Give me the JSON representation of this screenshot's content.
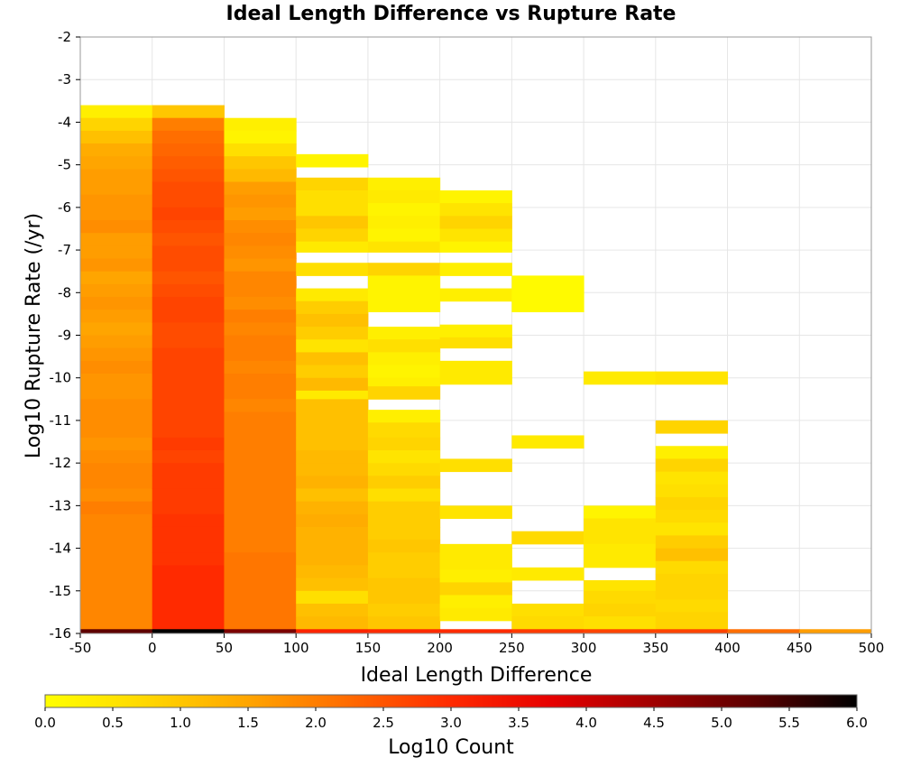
{
  "chart_data": {
    "type": "heatmap",
    "title": "Ideal Length Difference vs Rupture Rate",
    "xlabel": "Ideal Length Difference",
    "ylabel": "Log10 Rupture Rate (/yr)",
    "xlim": [
      -50,
      500
    ],
    "ylim": [
      -16,
      -2
    ],
    "x_ticks": [
      "-50",
      "0",
      "50",
      "100",
      "150",
      "200",
      "250",
      "300",
      "350",
      "400",
      "450",
      "500"
    ],
    "y_ticks": [
      "-2",
      "-3",
      "-4",
      "-5",
      "-6",
      "-7",
      "-8",
      "-9",
      "-10",
      "-11",
      "-12",
      "-13",
      "-14",
      "-15",
      "-16"
    ],
    "x_bin_width": 50,
    "y_bin_height": 0.3,
    "grid": true,
    "colorbar": {
      "label": "Log10 Count",
      "range": [
        0,
        6
      ],
      "ticks": [
        "0.0",
        "0.5",
        "1.0",
        "1.5",
        "2.0",
        "2.5",
        "3.0",
        "3.5",
        "4.0",
        "4.5",
        "5.0",
        "5.5",
        "6.0"
      ],
      "colors": [
        "#ffff00",
        "#ffd700",
        "#ffa500",
        "#ff6a00",
        "#ff2a00",
        "#e60000",
        "#a00000",
        "#5a0000",
        "#000000"
      ]
    },
    "columns": [
      {
        "x_start": -50,
        "top": -3.6,
        "bottom": -16,
        "values": [
          0.3,
          0.8,
          1.1,
          1.4,
          1.5,
          1.6,
          1.6,
          1.7,
          1.7,
          1.8,
          1.6,
          1.6,
          1.7,
          1.5,
          1.6,
          1.7,
          1.6,
          1.5,
          1.6,
          1.7,
          1.8,
          1.7,
          1.7,
          1.8,
          1.8,
          1.8,
          1.7,
          1.8,
          1.9,
          1.9,
          1.8,
          2.0,
          1.9,
          1.9,
          1.9,
          1.9,
          1.9,
          1.9,
          1.9,
          1.9,
          1.9
        ],
        "bottom_value": 5.2
      },
      {
        "x_start": 0,
        "top": -3.6,
        "bottom": -16,
        "values": [
          1.0,
          2.0,
          2.2,
          2.3,
          2.4,
          2.5,
          2.6,
          2.6,
          2.7,
          2.6,
          2.5,
          2.6,
          2.6,
          2.5,
          2.6,
          2.7,
          2.7,
          2.6,
          2.6,
          2.7,
          2.7,
          2.7,
          2.7,
          2.7,
          2.7,
          2.7,
          2.8,
          2.7,
          2.8,
          2.8,
          2.8,
          2.8,
          2.9,
          2.9,
          2.9,
          2.9,
          3.0,
          3.0,
          3.0,
          3.0,
          3.0
        ],
        "bottom_value": 6.0
      },
      {
        "x_start": 50,
        "top": -3.9,
        "bottom": -16,
        "values": [
          0.3,
          0.2,
          0.6,
          1.0,
          1.2,
          1.6,
          1.7,
          1.6,
          1.8,
          1.9,
          1.8,
          1.7,
          1.9,
          1.9,
          1.8,
          2.0,
          1.9,
          2.0,
          2.0,
          1.9,
          2.0,
          2.0,
          1.9,
          2.0,
          2.0,
          2.0,
          2.0,
          2.0,
          2.0,
          2.0,
          2.0,
          2.0,
          2.0,
          2.0,
          2.1,
          2.1,
          2.1,
          2.1,
          2.1,
          2.1
        ],
        "bottom_value": 4.9
      },
      {
        "x_start": 100,
        "segments": [
          [
            -4.75,
            -5.05,
            0.2
          ],
          [
            -5.3,
            -5.6,
            0.8
          ],
          [
            -5.6,
            -5.9,
            0.6
          ],
          [
            -5.9,
            -6.2,
            0.6
          ],
          [
            -6.2,
            -6.5,
            1.0
          ],
          [
            -6.5,
            -6.8,
            0.8
          ],
          [
            -6.8,
            -7.05,
            0.4
          ],
          [
            -7.3,
            -7.6,
            0.6
          ],
          [
            -7.9,
            -8.2,
            0.4
          ],
          [
            -8.2,
            -8.5,
            0.9
          ],
          [
            -8.5,
            -8.8,
            1.1
          ],
          [
            -8.8,
            -9.1,
            0.9
          ],
          [
            -9.1,
            -9.4,
            0.5
          ],
          [
            -9.4,
            -9.7,
            1.1
          ],
          [
            -9.7,
            -10.0,
            0.9
          ],
          [
            -10.0,
            -10.3,
            1.2
          ],
          [
            -10.3,
            -10.5,
            0.4
          ],
          [
            -10.5,
            -10.8,
            1.1
          ],
          [
            -10.8,
            -11.1,
            1.1
          ],
          [
            -11.1,
            -11.4,
            1.1
          ],
          [
            -11.4,
            -11.7,
            1.1
          ],
          [
            -11.7,
            -12.0,
            1.2
          ],
          [
            -12.0,
            -12.3,
            1.2
          ],
          [
            -12.3,
            -12.6,
            1.3
          ],
          [
            -12.6,
            -12.9,
            1.1
          ],
          [
            -12.9,
            -13.2,
            1.3
          ],
          [
            -13.2,
            -13.5,
            1.4
          ],
          [
            -13.5,
            -13.8,
            1.3
          ],
          [
            -13.8,
            -14.1,
            1.3
          ],
          [
            -14.1,
            -14.4,
            1.3
          ],
          [
            -14.4,
            -14.7,
            1.2
          ],
          [
            -14.7,
            -15.0,
            1.1
          ],
          [
            -15.0,
            -15.3,
            0.6
          ],
          [
            -15.3,
            -15.6,
            1.1
          ],
          [
            -15.6,
            -15.9,
            1.2
          ],
          [
            -15.9,
            -16.0,
            3.1
          ]
        ]
      },
      {
        "x_start": 150,
        "segments": [
          [
            -5.3,
            -5.6,
            0.3
          ],
          [
            -5.6,
            -5.9,
            0.4
          ],
          [
            -5.9,
            -6.2,
            0.2
          ],
          [
            -6.2,
            -6.5,
            0.3
          ],
          [
            -6.5,
            -6.8,
            0.2
          ],
          [
            -6.8,
            -7.05,
            0.5
          ],
          [
            -7.3,
            -7.6,
            0.8
          ],
          [
            -7.6,
            -7.9,
            0.2
          ],
          [
            -7.9,
            -8.2,
            0.2
          ],
          [
            -8.2,
            -8.45,
            0.2
          ],
          [
            -8.8,
            -9.1,
            0.3
          ],
          [
            -9.1,
            -9.4,
            0.6
          ],
          [
            -9.4,
            -9.7,
            0.3
          ],
          [
            -9.7,
            -10.0,
            0.2
          ],
          [
            -10.0,
            -10.2,
            0.3
          ],
          [
            -10.2,
            -10.5,
            0.8
          ],
          [
            -10.75,
            -11.05,
            0.3
          ],
          [
            -11.05,
            -11.4,
            0.7
          ],
          [
            -11.4,
            -11.7,
            0.8
          ],
          [
            -11.7,
            -12.0,
            0.5
          ],
          [
            -12.0,
            -12.3,
            0.7
          ],
          [
            -12.3,
            -12.6,
            0.9
          ],
          [
            -12.6,
            -12.9,
            0.6
          ],
          [
            -12.9,
            -13.2,
            0.9
          ],
          [
            -13.2,
            -13.5,
            0.9
          ],
          [
            -13.5,
            -13.8,
            0.9
          ],
          [
            -13.8,
            -14.1,
            1.0
          ],
          [
            -14.1,
            -14.4,
            0.9
          ],
          [
            -14.4,
            -14.7,
            0.9
          ],
          [
            -14.7,
            -15.0,
            1.0
          ],
          [
            -15.0,
            -15.3,
            1.0
          ],
          [
            -15.3,
            -15.6,
            0.9
          ],
          [
            -15.6,
            -15.9,
            1.0
          ],
          [
            -15.9,
            -16.0,
            3.0
          ]
        ]
      },
      {
        "x_start": 200,
        "segments": [
          [
            -5.6,
            -5.9,
            0.2
          ],
          [
            -5.9,
            -6.2,
            0.5
          ],
          [
            -6.2,
            -6.5,
            0.8
          ],
          [
            -6.5,
            -6.8,
            0.5
          ],
          [
            -6.8,
            -7.05,
            0.2
          ],
          [
            -7.3,
            -7.6,
            0.3
          ],
          [
            -7.9,
            -8.2,
            0.3
          ],
          [
            -8.75,
            -9.05,
            0.3
          ],
          [
            -9.05,
            -9.3,
            0.6
          ],
          [
            -9.6,
            -9.9,
            0.4
          ],
          [
            -9.9,
            -10.15,
            0.4
          ],
          [
            -11.9,
            -12.2,
            0.6
          ],
          [
            -13.0,
            -13.3,
            0.5
          ],
          [
            -13.9,
            -14.2,
            0.4
          ],
          [
            -14.2,
            -14.5,
            0.4
          ],
          [
            -14.5,
            -14.8,
            0.3
          ],
          [
            -14.8,
            -15.1,
            0.8
          ],
          [
            -15.1,
            -15.4,
            0.3
          ],
          [
            -15.4,
            -15.7,
            0.4
          ],
          [
            -15.9,
            -16.0,
            3.0
          ]
        ]
      },
      {
        "x_start": 250,
        "segments": [
          [
            -7.6,
            -7.9,
            0.1
          ],
          [
            -7.9,
            -8.2,
            0.1
          ],
          [
            -8.2,
            -8.45,
            0.1
          ],
          [
            -11.35,
            -11.65,
            0.4
          ],
          [
            -13.6,
            -13.9,
            0.7
          ],
          [
            -14.45,
            -14.75,
            0.4
          ],
          [
            -15.3,
            -15.6,
            0.6
          ],
          [
            -15.6,
            -15.9,
            0.7
          ],
          [
            -15.9,
            -16.0,
            2.8
          ]
        ]
      },
      {
        "x_start": 300,
        "segments": [
          [
            -9.85,
            -10.15,
            0.4
          ],
          [
            -13.0,
            -13.3,
            0.2
          ],
          [
            -13.3,
            -13.6,
            0.5
          ],
          [
            -13.6,
            -13.9,
            0.5
          ],
          [
            -13.9,
            -14.2,
            0.4
          ],
          [
            -14.2,
            -14.45,
            0.4
          ],
          [
            -14.75,
            -15.0,
            0.5
          ],
          [
            -15.0,
            -15.3,
            0.7
          ],
          [
            -15.3,
            -15.6,
            0.8
          ],
          [
            -15.6,
            -15.9,
            0.6
          ],
          [
            -15.9,
            -16.0,
            2.7
          ]
        ]
      },
      {
        "x_start": 350,
        "segments": [
          [
            -9.85,
            -10.15,
            0.5
          ],
          [
            -11.0,
            -11.3,
            0.8
          ],
          [
            -11.6,
            -11.9,
            0.3
          ],
          [
            -11.9,
            -12.2,
            0.8
          ],
          [
            -12.2,
            -12.5,
            0.5
          ],
          [
            -12.5,
            -12.8,
            0.6
          ],
          [
            -12.8,
            -13.1,
            0.8
          ],
          [
            -13.1,
            -13.4,
            0.7
          ],
          [
            -13.4,
            -13.7,
            0.5
          ],
          [
            -13.7,
            -14.0,
            0.9
          ],
          [
            -14.0,
            -14.3,
            1.1
          ],
          [
            -14.3,
            -14.6,
            0.7
          ],
          [
            -14.6,
            -14.9,
            0.8
          ],
          [
            -14.9,
            -15.2,
            0.8
          ],
          [
            -15.2,
            -15.5,
            0.7
          ],
          [
            -15.5,
            -15.9,
            0.8
          ],
          [
            -15.9,
            -16.0,
            2.7
          ]
        ]
      },
      {
        "x_start": 400,
        "segments": [
          [
            -15.9,
            -16.0,
            2.2
          ]
        ]
      },
      {
        "x_start": 450,
        "segments": [
          [
            -15.9,
            -16.0,
            1.6
          ]
        ]
      }
    ]
  }
}
